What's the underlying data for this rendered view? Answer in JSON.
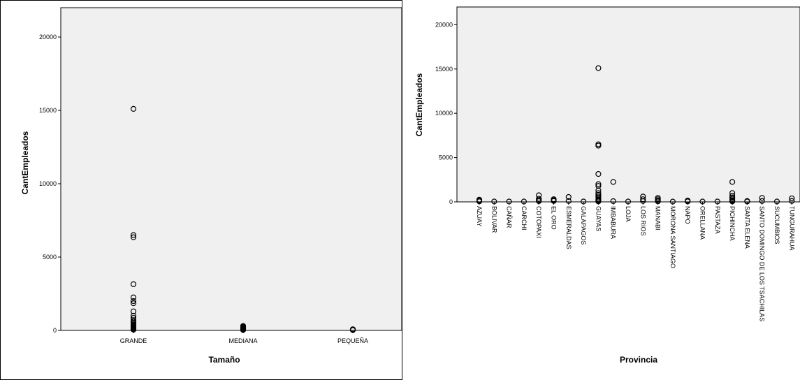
{
  "colors": {
    "plot_background": "#f0f0f0",
    "marker": "#000000",
    "axis": "#000000"
  },
  "chart_data": [
    {
      "type": "scatter",
      "xlabel": "Tamaño",
      "ylabel": "CantEmpleados",
      "categories": [
        "GRANDE",
        "MEDIANA",
        "PEQUEÑA"
      ],
      "ylim": [
        0,
        22000
      ],
      "yticks": [
        0,
        5000,
        10000,
        15000,
        20000
      ],
      "grid": false,
      "marker": "open-circle",
      "points": [
        {
          "x": "GRANDE",
          "y": 15100
        },
        {
          "x": "GRANDE",
          "y": 6500
        },
        {
          "x": "GRANDE",
          "y": 6350
        },
        {
          "x": "GRANDE",
          "y": 3150
        },
        {
          "x": "GRANDE",
          "y": 2250
        },
        {
          "x": "GRANDE",
          "y": 2000
        },
        {
          "x": "GRANDE",
          "y": 1850
        },
        {
          "x": "GRANDE",
          "y": 1300
        },
        {
          "x": "GRANDE",
          "y": 1000
        },
        {
          "x": "GRANDE",
          "y": 850
        },
        {
          "x": "GRANDE",
          "y": 700
        },
        {
          "x": "GRANDE",
          "y": 600
        },
        {
          "x": "GRANDE",
          "y": 500
        },
        {
          "x": "GRANDE",
          "y": 420
        },
        {
          "x": "GRANDE",
          "y": 350
        },
        {
          "x": "GRANDE",
          "y": 300
        },
        {
          "x": "GRANDE",
          "y": 250
        },
        {
          "x": "GRANDE",
          "y": 200
        },
        {
          "x": "GRANDE",
          "y": 150
        },
        {
          "x": "GRANDE",
          "y": 100
        },
        {
          "x": "GRANDE",
          "y": 50
        },
        {
          "x": "MEDIANA",
          "y": 300
        },
        {
          "x": "MEDIANA",
          "y": 250
        },
        {
          "x": "MEDIANA",
          "y": 200
        },
        {
          "x": "MEDIANA",
          "y": 150
        },
        {
          "x": "MEDIANA",
          "y": 100
        },
        {
          "x": "MEDIANA",
          "y": 60
        },
        {
          "x": "MEDIANA",
          "y": 30
        },
        {
          "x": "PEQUEÑA",
          "y": 80
        },
        {
          "x": "PEQUEÑA",
          "y": 50
        },
        {
          "x": "PEQUEÑA",
          "y": 20
        }
      ]
    },
    {
      "type": "scatter",
      "xlabel": "Provincia",
      "ylabel": "CantEmpleados",
      "categories": [
        "AZUAY",
        "BOLIVAR",
        "CAÑAR",
        "CARCHI",
        "COTOPAXI",
        "EL ORO",
        "ESMERALDAS",
        "GALAPAGOS",
        "GUAYAS",
        "IMBABURA",
        "LOJA",
        "LOS RIOS",
        "MANABI",
        "MORONA SANTIAGO",
        "NAPO",
        "ORELLANA",
        "PASTAZA",
        "PICHINCHA",
        "SANTA ELENA",
        "SANTO DOMINGO DE LOS TSACHILAS",
        "SUCUMBIOS",
        "TUNGURAHUA"
      ],
      "ylim": [
        0,
        22000
      ],
      "yticks": [
        0,
        5000,
        10000,
        15000,
        20000
      ],
      "grid": false,
      "marker": "open-circle",
      "points": [
        {
          "x": "AZUAY",
          "y": 250
        },
        {
          "x": "AZUAY",
          "y": 150
        },
        {
          "x": "AZUAY",
          "y": 60
        },
        {
          "x": "BOLIVAR",
          "y": 40
        },
        {
          "x": "CAÑAR",
          "y": 40
        },
        {
          "x": "CARCHI",
          "y": 40
        },
        {
          "x": "COTOPAXI",
          "y": 750
        },
        {
          "x": "COTOPAXI",
          "y": 350
        },
        {
          "x": "COTOPAXI",
          "y": 200
        },
        {
          "x": "COTOPAXI",
          "y": 80
        },
        {
          "x": "EL ORO",
          "y": 300
        },
        {
          "x": "EL ORO",
          "y": 200
        },
        {
          "x": "EL ORO",
          "y": 100
        },
        {
          "x": "ESMERALDAS",
          "y": 550
        },
        {
          "x": "ESMERALDAS",
          "y": 100
        },
        {
          "x": "GALAPAGOS",
          "y": 40
        },
        {
          "x": "GUAYAS",
          "y": 15100
        },
        {
          "x": "GUAYAS",
          "y": 6500
        },
        {
          "x": "GUAYAS",
          "y": 6350
        },
        {
          "x": "GUAYAS",
          "y": 3150
        },
        {
          "x": "GUAYAS",
          "y": 2000
        },
        {
          "x": "GUAYAS",
          "y": 1800
        },
        {
          "x": "GUAYAS",
          "y": 1300
        },
        {
          "x": "GUAYAS",
          "y": 1000
        },
        {
          "x": "GUAYAS",
          "y": 800
        },
        {
          "x": "GUAYAS",
          "y": 600
        },
        {
          "x": "GUAYAS",
          "y": 450
        },
        {
          "x": "GUAYAS",
          "y": 300
        },
        {
          "x": "GUAYAS",
          "y": 200
        },
        {
          "x": "GUAYAS",
          "y": 100
        },
        {
          "x": "GUAYAS",
          "y": 50
        },
        {
          "x": "IMBABURA",
          "y": 2250
        },
        {
          "x": "IMBABURA",
          "y": 80
        },
        {
          "x": "LOJA",
          "y": 40
        },
        {
          "x": "LOS RIOS",
          "y": 600
        },
        {
          "x": "LOS RIOS",
          "y": 300
        },
        {
          "x": "LOS RIOS",
          "y": 100
        },
        {
          "x": "MANABI",
          "y": 450
        },
        {
          "x": "MANABI",
          "y": 300
        },
        {
          "x": "MANABI",
          "y": 150
        },
        {
          "x": "MANABI",
          "y": 60
        },
        {
          "x": "MORONA SANTIAGO",
          "y": 30
        },
        {
          "x": "NAPO",
          "y": 150
        },
        {
          "x": "NAPO",
          "y": 50
        },
        {
          "x": "ORELLANA",
          "y": 40
        },
        {
          "x": "PASTAZA",
          "y": 40
        },
        {
          "x": "PICHINCHA",
          "y": 2250
        },
        {
          "x": "PICHINCHA",
          "y": 1000
        },
        {
          "x": "PICHINCHA",
          "y": 700
        },
        {
          "x": "PICHINCHA",
          "y": 500
        },
        {
          "x": "PICHINCHA",
          "y": 350
        },
        {
          "x": "PICHINCHA",
          "y": 200
        },
        {
          "x": "PICHINCHA",
          "y": 100
        },
        {
          "x": "PICHINCHA",
          "y": 50
        },
        {
          "x": "SANTA ELENA",
          "y": 100
        },
        {
          "x": "SANTA ELENA",
          "y": 40
        },
        {
          "x": "SANTO DOMINGO DE LOS TSACHILAS",
          "y": 450
        },
        {
          "x": "SANTO DOMINGO DE LOS TSACHILAS",
          "y": 100
        },
        {
          "x": "SUCUMBIOS",
          "y": 40
        },
        {
          "x": "TUNGURAHUA",
          "y": 400
        },
        {
          "x": "TUNGURAHUA",
          "y": 100
        }
      ]
    }
  ]
}
